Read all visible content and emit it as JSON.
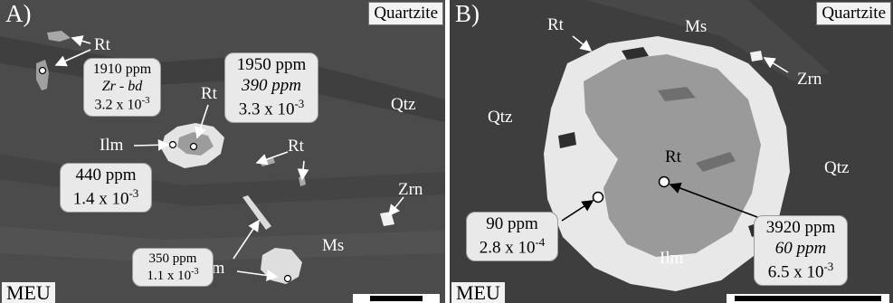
{
  "panel_a": {
    "letter": "A)",
    "rock_type": "Quartzite",
    "site": "MEU",
    "mineral_labels": {
      "rt_top": "Rt",
      "rt_mid": "Rt",
      "rt_right": "Rt",
      "ilm_mid": "Ilm",
      "ilm_bottom": "Ilm",
      "qtz": "Qtz",
      "zrn": "Zrn",
      "ms": "Ms"
    },
    "measurements": [
      {
        "lines": [
          "1910 ppm",
          "Zr - bd",
          "3.2 x 10"
        ],
        "exponent": "-3"
      },
      {
        "lines": [
          "1950 ppm",
          "390 ppm",
          "3.3 x 10"
        ],
        "exponent": "-3"
      },
      {
        "lines": [
          "440 ppm",
          "1.4 x 10"
        ],
        "exponent": "-3"
      },
      {
        "lines": [
          "350 ppm",
          "1.1 x 10"
        ],
        "exponent": "-3"
      }
    ]
  },
  "panel_b": {
    "letter": "B)",
    "rock_type": "Quartzite",
    "site": "MEU",
    "mineral_labels": {
      "rt_top": "Rt",
      "ms": "Ms",
      "zrn": "Zrn",
      "qtz_left": "Qtz",
      "qtz_right": "Qtz",
      "rt_center": "Rt",
      "ilm": "Ilm"
    },
    "measurements": [
      {
        "lines": [
          "90 ppm",
          "2.8 x 10"
        ],
        "exponent": "-4"
      },
      {
        "lines": [
          "3920 ppm",
          "60 ppm",
          "6.5 x 10"
        ],
        "exponent": "-3"
      }
    ]
  },
  "colors": {
    "matrix_a": "#4b4b4b",
    "matrix_b": "#3e3e3e",
    "rutile": "#9c9c9c",
    "ilmenite": "#e6e6e6",
    "label_box": "#e9e9e9"
  }
}
